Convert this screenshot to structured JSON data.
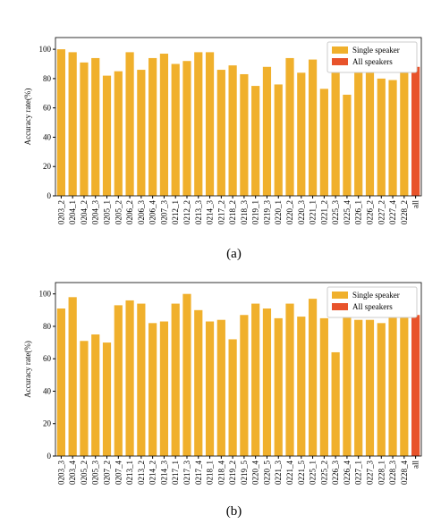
{
  "chart_data": [
    {
      "type": "bar",
      "caption": "(a)",
      "y_label": "Accuracy rate(%)",
      "ylim": [
        0,
        108
      ],
      "yticks": [
        0,
        20,
        40,
        60,
        80,
        100
      ],
      "legend": "upper right",
      "categories": [
        "0203_2",
        "0204_1",
        "0204_2",
        "0204_3",
        "0205_1",
        "0205_2",
        "0206_2",
        "0206_3",
        "0206_4",
        "0207_3",
        "0212_1",
        "0212_2",
        "0213_3",
        "0214_3",
        "0217_2",
        "0218_2",
        "0218_3",
        "0219_1",
        "0219_3",
        "0220_1",
        "0220_2",
        "0220_3",
        "0221_1",
        "0221_2",
        "0225_3",
        "0225_4",
        "0226_1",
        "0226_2",
        "0227_2",
        "0227_4",
        "0228_2",
        "all"
      ],
      "series": [
        {
          "name": "Single speaker",
          "color": "#f0b02c",
          "values": [
            100,
            98,
            91,
            94,
            82,
            85,
            98,
            86,
            94,
            97,
            90,
            92,
            98,
            98,
            86,
            89,
            83,
            75,
            88,
            76,
            94,
            84,
            93,
            73,
            86,
            69,
            92,
            87,
            80,
            79,
            85,
            null
          ]
        },
        {
          "name": "All speakers",
          "color": "#e8532b",
          "values": [
            null,
            null,
            null,
            null,
            null,
            null,
            null,
            null,
            null,
            null,
            null,
            null,
            null,
            null,
            null,
            null,
            null,
            null,
            null,
            null,
            null,
            null,
            null,
            null,
            null,
            null,
            null,
            null,
            null,
            null,
            null,
            88
          ]
        }
      ]
    },
    {
      "type": "bar",
      "caption": "(b)",
      "y_label": "Accuracy rate(%)",
      "ylim": [
        0,
        107
      ],
      "yticks": [
        0,
        20,
        40,
        60,
        80,
        100
      ],
      "legend": "upper right",
      "categories": [
        "0203_3",
        "0203_4",
        "0205_2",
        "0205_3",
        "0207_2",
        "0207_4",
        "0213_1",
        "0213_2",
        "0214_2",
        "0214_3",
        "0217_1",
        "0217_3",
        "0217_4",
        "0218_1",
        "0218_4",
        "0219_2",
        "0219_5",
        "0220_4",
        "0220_5",
        "0221_3",
        "0221_4",
        "0221_5",
        "0225_1",
        "0225_2",
        "0226_3",
        "0226_4",
        "0227_1",
        "0227_3",
        "0228_1",
        "0228_3",
        "0228_4",
        "all"
      ],
      "series": [
        {
          "name": "Single speaker",
          "color": "#f0b02c",
          "values": [
            91,
            98,
            71,
            75,
            70,
            93,
            96,
            94,
            82,
            83,
            94,
            100,
            90,
            83,
            84,
            72,
            87,
            94,
            91,
            85,
            94,
            86,
            97,
            85,
            64,
            93,
            84,
            84,
            82,
            88,
            90,
            null
          ]
        },
        {
          "name": "All speakers",
          "color": "#e8532b",
          "values": [
            null,
            null,
            null,
            null,
            null,
            null,
            null,
            null,
            null,
            null,
            null,
            null,
            null,
            null,
            null,
            null,
            null,
            null,
            null,
            null,
            null,
            null,
            null,
            null,
            null,
            null,
            null,
            null,
            null,
            null,
            null,
            87
          ]
        }
      ]
    }
  ]
}
